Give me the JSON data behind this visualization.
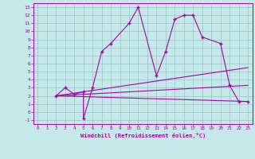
{
  "xlabel": "Windchill (Refroidissement éolien,°C)",
  "background_color": "#c5e8e8",
  "grid_color": "#a0c8c8",
  "line_color": "#aa00aa",
  "xlim": [
    -0.5,
    23.5
  ],
  "ylim": [
    -1.5,
    13.5
  ],
  "xticks": [
    0,
    1,
    2,
    3,
    4,
    5,
    6,
    7,
    8,
    9,
    10,
    11,
    12,
    13,
    14,
    15,
    16,
    17,
    18,
    19,
    20,
    21,
    22,
    23
  ],
  "yticks": [
    -1,
    0,
    1,
    2,
    3,
    4,
    5,
    6,
    7,
    8,
    9,
    10,
    11,
    12,
    13
  ],
  "line1_x": [
    2,
    3,
    4,
    5,
    5,
    6,
    7,
    8,
    10,
    11,
    13,
    14,
    15,
    16,
    17,
    18,
    20,
    21,
    22,
    23
  ],
  "line1_y": [
    2,
    3,
    2.2,
    2.5,
    -0.8,
    3.0,
    7.5,
    8.5,
    11.0,
    13.0,
    4.5,
    7.5,
    11.5,
    12.0,
    12.0,
    9.3,
    8.5,
    3.3,
    1.3,
    1.3
  ],
  "line2_x": [
    2,
    23
  ],
  "line2_y": [
    2.0,
    5.5
  ],
  "line3_x": [
    2,
    23
  ],
  "line3_y": [
    2.0,
    3.3
  ],
  "line4_x": [
    2,
    23
  ],
  "line4_y": [
    2.0,
    1.3
  ]
}
